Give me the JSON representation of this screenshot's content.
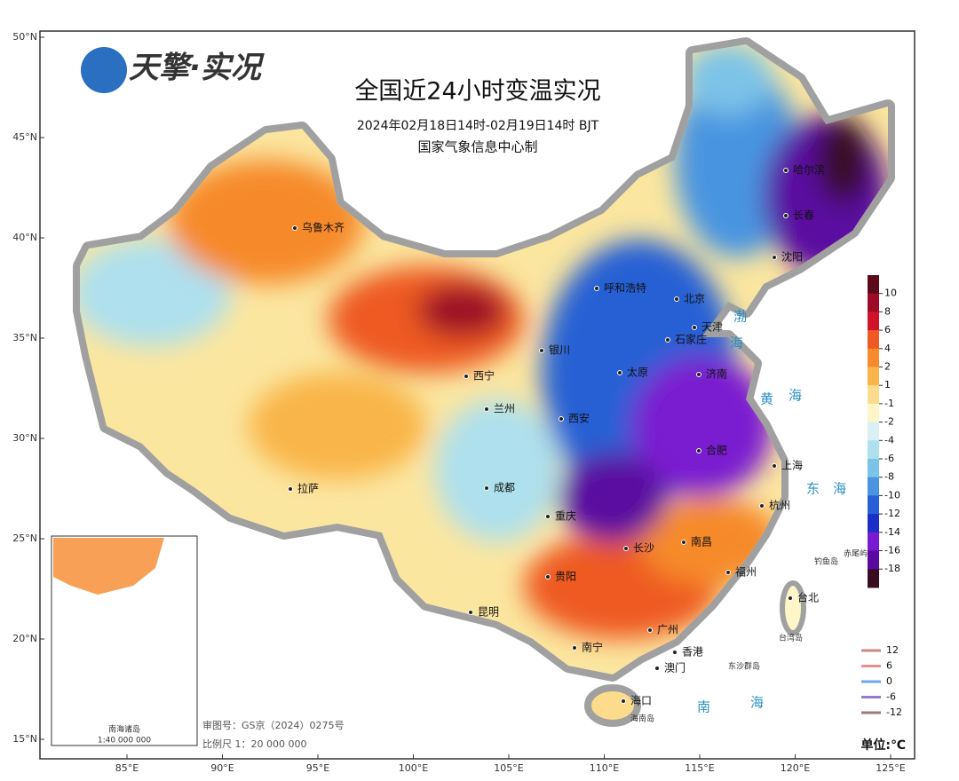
{
  "header": {
    "logo": "天擎·实况",
    "title": "全国近24小时变温实况",
    "subtitle": "2024年02月18日14时-02月19日14时  BJT",
    "credit": "国家气象信息中心制"
  },
  "axes": {
    "lat_ticks": [
      {
        "value": 50,
        "label": "50°N"
      },
      {
        "value": 45,
        "label": "45°N"
      },
      {
        "value": 40,
        "label": "40°N"
      },
      {
        "value": 35,
        "label": "35°N"
      },
      {
        "value": 30,
        "label": "30°N"
      },
      {
        "value": 25,
        "label": "25°N"
      },
      {
        "value": 20,
        "label": "20°N"
      },
      {
        "value": 15,
        "label": "15°N"
      }
    ],
    "lon_ticks": [
      {
        "value": 85,
        "label": "85°E"
      },
      {
        "value": 90,
        "label": "90°E"
      },
      {
        "value": 95,
        "label": "95°E"
      },
      {
        "value": 100,
        "label": "100°E"
      },
      {
        "value": 105,
        "label": "105°E"
      },
      {
        "value": 110,
        "label": "110°E"
      },
      {
        "value": 115,
        "label": "115°E"
      },
      {
        "value": 120,
        "label": "120°E"
      },
      {
        "value": 125,
        "label": "125°E"
      }
    ]
  },
  "legend": {
    "ticks": [
      10,
      8,
      6,
      4,
      2,
      1,
      -1,
      -2,
      -4,
      -6,
      -8,
      -10,
      -12,
      -14,
      -16,
      -18
    ],
    "colors": [
      "#5c0a1a",
      "#9e0b26",
      "#d1132a",
      "#ee5a24",
      "#f68a2c",
      "#f9b54a",
      "#fcdc8c",
      "#fef6c8",
      "#d9f0f4",
      "#aee0ee",
      "#7cc3e8",
      "#4a94e0",
      "#2660d4",
      "#1a2fc8",
      "#7a1ad0",
      "#5a0aa0",
      "#3a0a20"
    ],
    "unit": "单位:℃"
  },
  "contour_legend": [
    {
      "value": 12,
      "color": "#c98a8a"
    },
    {
      "value": 6,
      "color": "#e89090"
    },
    {
      "value": 0,
      "color": "#6aa8e8"
    },
    {
      "value": -6,
      "color": "#9a7ad0"
    },
    {
      "value": -12,
      "color": "#9a7a7a"
    }
  ],
  "cities": [
    "乌鲁木齐",
    "哈尔滨",
    "长春",
    "沈阳",
    "呼和浩特",
    "北京",
    "天津",
    "石家庄",
    "太原",
    "济南",
    "银川",
    "西宁",
    "兰州",
    "西安",
    "合肥",
    "上海",
    "杭州",
    "成都",
    "重庆",
    "拉萨",
    "长沙",
    "南昌",
    "贵阳",
    "福州",
    "台北",
    "昆明",
    "南宁",
    "广州",
    "香港",
    "澳门",
    "海口",
    "钓鱼岛",
    "赤尾屿",
    "东沙群岛",
    "台湾岛",
    "海南岛"
  ],
  "seas": [
    "渤",
    "海",
    "黄",
    "海",
    "东",
    "海",
    "南",
    "海"
  ],
  "inset": {
    "title": "南海诸岛",
    "scale": "1:40 000 000"
  },
  "footer": {
    "approval": "审图号：GS京（2024）0275号",
    "scale": "比例尺 1：20 000 000"
  }
}
